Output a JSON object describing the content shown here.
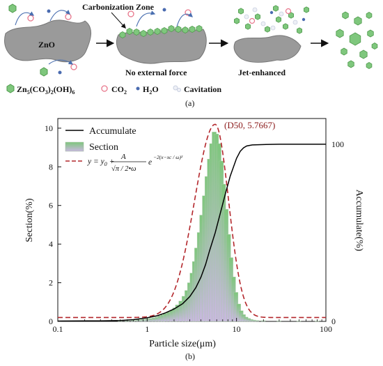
{
  "panel_a": {
    "caption": "(a)",
    "zno_label": "ZnO",
    "carbonization_label": "Carbonization Zone",
    "stage2_label": "No external force",
    "stage3_label": "Jet-enhanced",
    "legend": {
      "zn_formula": "Zn5(CO3)2(OH)6",
      "co2": "CO2",
      "h2o": "H2O",
      "cavitation": "Cavitation"
    },
    "colors": {
      "hexagon": "#7fc77d",
      "hexagon_stroke": "#4f9a4c",
      "co2": "#e8778c",
      "h2o": "#4a6bb0",
      "particle": "#9a9a9a",
      "arrow": "#4a6fb0"
    }
  },
  "panel_b": {
    "caption": "(b)"
  },
  "chart_data": {
    "type": "bar",
    "xlabel": "Particle size(μm)",
    "ylabel": "Section(%)",
    "ylabel_right": "Accumulate(%)",
    "x_scale": "log",
    "xlim": [
      0.1,
      100
    ],
    "ylim": [
      0,
      10.5
    ],
    "ylim_right": [
      0,
      114.5
    ],
    "x_ticks": [
      "0.1",
      "1",
      "10",
      "100"
    ],
    "y_ticks": [
      "0",
      "2",
      "4",
      "6",
      "8",
      "10"
    ],
    "y_ticks_right": [
      "0",
      "100"
    ],
    "legend": [
      "Accumulate",
      "Section",
      "y = y0 + A/√(π/2•ω) e^(−2((x−xc)/ω)²)"
    ],
    "annotation": "(D50, 5.7667)",
    "colors": {
      "bar_top": "#7fc77d",
      "bar_bottom": "#c9b8e0",
      "accumulate": "#000000",
      "fit": "#b3262b"
    },
    "series": [
      {
        "name": "Section",
        "x": [
          0.5,
          0.6,
          0.7,
          0.8,
          0.9,
          1.0,
          1.1,
          1.2,
          1.3,
          1.4,
          1.5,
          1.6,
          1.75,
          1.9,
          2.05,
          2.2,
          2.4,
          2.6,
          2.8,
          3.0,
          3.2,
          3.4,
          3.6,
          3.85,
          4.1,
          4.4,
          4.7,
          5.0,
          5.3,
          5.65,
          6.0,
          6.4,
          6.8,
          7.2,
          7.7,
          8.2,
          8.7,
          9.3,
          9.9,
          10.6,
          11.3,
          12.0,
          12.8,
          13.7,
          14.6,
          15.6,
          17.0,
          20.0,
          30.0,
          50.0,
          80.0
        ],
        "values": [
          0.02,
          0.04,
          0.06,
          0.08,
          0.1,
          0.12,
          0.15,
          0.18,
          0.22,
          0.28,
          0.33,
          0.4,
          0.48,
          0.58,
          0.7,
          0.85,
          1.05,
          1.3,
          1.6,
          2.0,
          2.5,
          3.1,
          3.8,
          4.6,
          5.5,
          6.5,
          7.5,
          8.4,
          9.2,
          9.8,
          9.7,
          9.2,
          8.3,
          7.1,
          5.8,
          4.5,
          3.3,
          2.3,
          1.5,
          0.9,
          0.55,
          0.35,
          0.22,
          0.15,
          0.1,
          0.07,
          0.05,
          0.04,
          0.03,
          0.02,
          0.02
        ]
      },
      {
        "name": "Accumulate",
        "x": [
          0.1,
          0.3,
          0.5,
          0.7,
          1.0,
          1.3,
          1.6,
          2.0,
          2.5,
          3.0,
          3.5,
          4.0,
          4.5,
          5.0,
          5.77,
          6.5,
          7.5,
          8.5,
          10.0,
          11.0,
          12.0,
          13.0,
          15.0,
          20.0,
          30.0,
          50.0,
          100.0
        ],
        "values": [
          0.2,
          0.3,
          0.5,
          1.0,
          2.0,
          3.2,
          4.8,
          7.0,
          10.0,
          14.0,
          19.0,
          25.0,
          32.0,
          40.0,
          50.0,
          60.0,
          72.0,
          82.0,
          92.0,
          96.0,
          98.0,
          99.0,
          99.6,
          99.8,
          100.0,
          100.0,
          100.0
        ]
      },
      {
        "name": "fit",
        "y0": 0.2,
        "xc": 5.7667,
        "peak": 10.2,
        "w_log_left": 0.46,
        "w_log_right": 0.3
      }
    ]
  }
}
